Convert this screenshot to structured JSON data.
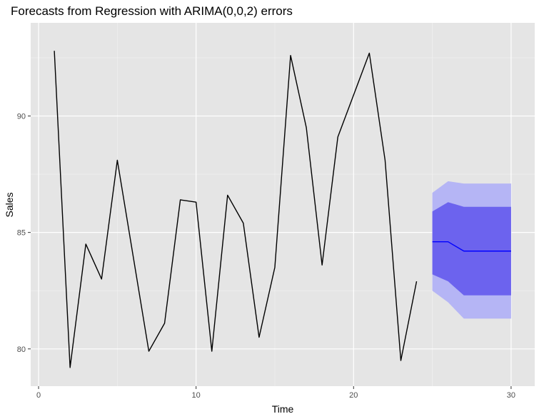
{
  "chart_data": {
    "type": "line",
    "title": "Forecasts from Regression with ARIMA(0,0,2) errors",
    "xlabel": "Time",
    "ylabel": "Sales",
    "xlim": [
      -0.5,
      31.5
    ],
    "ylim": [
      78.4,
      94.0
    ],
    "x_ticks": [
      0,
      10,
      20,
      30
    ],
    "x_tick_labels": [
      "0",
      "10",
      "20",
      "30"
    ],
    "y_ticks": [
      80,
      85,
      90
    ],
    "y_tick_labels": [
      "80",
      "85",
      "90"
    ],
    "grid": true,
    "series": [
      {
        "role": "observed",
        "color": "#000000",
        "x": [
          1,
          2,
          3,
          4,
          5,
          6,
          7,
          8,
          9,
          10,
          11,
          12,
          13,
          14,
          15,
          16,
          17,
          18,
          19,
          20,
          21,
          22,
          23,
          24
        ],
        "values": [
          92.8,
          79.2,
          84.5,
          83.0,
          88.1,
          84.0,
          79.9,
          81.1,
          86.4,
          86.3,
          79.9,
          86.6,
          85.4,
          80.5,
          83.5,
          92.6,
          89.5,
          83.6,
          89.1,
          90.9,
          92.7,
          88.1,
          79.5,
          82.9
        ]
      },
      {
        "role": "forecast",
        "color": "#0000ff",
        "x": [
          25,
          26,
          27,
          28,
          29,
          30
        ],
        "values": [
          84.6,
          84.6,
          84.2,
          84.2,
          84.2,
          84.2
        ]
      }
    ],
    "intervals": [
      {
        "level": "95",
        "color": "#b5b5f5",
        "x": [
          25,
          26,
          27,
          28,
          29,
          30
        ],
        "lower": [
          82.5,
          82.0,
          81.3,
          81.3,
          81.3,
          81.3
        ],
        "upper": [
          86.7,
          87.2,
          87.1,
          87.1,
          87.1,
          87.1
        ]
      },
      {
        "level": "80",
        "color": "#6c63ee",
        "x": [
          25,
          26,
          27,
          28,
          29,
          30
        ],
        "lower": [
          83.2,
          82.9,
          82.3,
          82.3,
          82.3,
          82.3
        ],
        "upper": [
          85.9,
          86.3,
          86.1,
          86.1,
          86.1,
          86.1
        ]
      }
    ],
    "colors": {
      "panel_background": "#e5e5e5",
      "grid_major": "#ffffff",
      "grid_minor": "#f2f2f2",
      "tick_label": "#4d4d4d"
    }
  }
}
